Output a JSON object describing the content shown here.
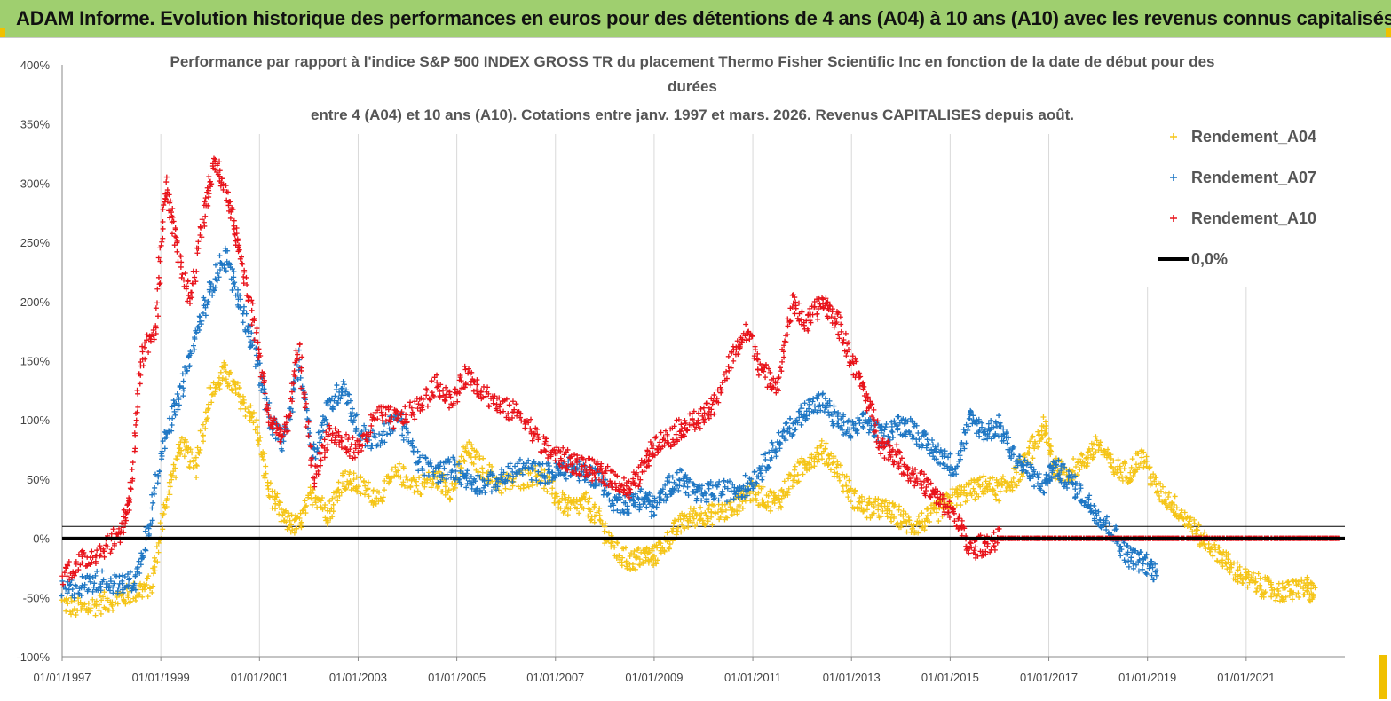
{
  "header": {
    "title": "ADAM Informe. Evolution historique des performances en euros pour des détentions de 4 ans (A04) à 10 ans (A10) avec les revenus connus capitalisés"
  },
  "chart_data": {
    "type": "scatter",
    "title_lines": [
      "Performance par rapport à l'indice S&P 500 INDEX GROSS TR  du placement Thermo Fisher Scientific Inc en fonction de la date de début pour des",
      "durées",
      "entre 4 (A04) et 10 ans (A10).  Cotations entre janv. 1997 et mars. 2026. Revenus CAPITALISES depuis août."
    ],
    "xlabel": "",
    "ylabel": "",
    "xlim": [
      1997.0,
      2023.0
    ],
    "ylim": [
      -100,
      400
    ],
    "yticks": [
      "-100%",
      "-50%",
      "0%",
      "50%",
      "100%",
      "150%",
      "200%",
      "250%",
      "300%",
      "350%",
      "400%"
    ],
    "xticks": [
      "01/01/1997",
      "01/01/1999",
      "01/01/2001",
      "01/01/2003",
      "01/01/2005",
      "01/01/2007",
      "01/01/2009",
      "01/01/2011",
      "01/01/2013",
      "01/01/2015",
      "01/01/2017",
      "01/01/2019",
      "01/01/2021"
    ],
    "grid": "vertical",
    "legend_position": "top-right",
    "series": [
      {
        "name": "Rendement_A04",
        "color": "#f5c518",
        "marker": "+",
        "x": [
          1997.0,
          1997.4,
          1997.8,
          1998.2,
          1998.5,
          1998.8,
          1999.1,
          1999.4,
          1999.7,
          2000.0,
          2000.3,
          2000.6,
          2000.9,
          2001.2,
          2001.5,
          2001.8,
          2002.1,
          2002.4,
          2002.7,
          2003.0,
          2003.4,
          2003.8,
          2004.2,
          2004.6,
          2004.9,
          2005.2,
          2005.5,
          2005.9,
          2006.3,
          2006.7,
          2007.0,
          2007.3,
          2007.6,
          2007.9,
          2008.2,
          2008.5,
          2008.8,
          2009.0,
          2009.3,
          2009.6,
          2009.9,
          2010.2,
          2010.6,
          2010.9,
          2011.2,
          2011.5,
          2011.8,
          2012.1,
          2012.4,
          2012.7,
          2013.0,
          2013.3,
          2013.6,
          2013.9,
          2014.2,
          2014.5,
          2014.8,
          2015.1,
          2015.4,
          2015.7,
          2016.0,
          2016.3,
          2016.6,
          2016.9,
          2017.1,
          2017.4,
          2017.7,
          2018.0,
          2018.3,
          2018.6,
          2018.9,
          2019.2,
          2019.5,
          2019.8,
          2020.1,
          2020.4,
          2020.7,
          2021.0,
          2021.3,
          2021.6,
          2021.9,
          2022.2,
          2022.4
        ],
        "y": [
          -55,
          -60,
          -55,
          -50,
          -45,
          -40,
          30,
          80,
          60,
          120,
          140,
          120,
          100,
          40,
          15,
          10,
          40,
          20,
          50,
          45,
          35,
          55,
          45,
          50,
          40,
          75,
          60,
          45,
          50,
          55,
          35,
          25,
          30,
          15,
          -10,
          -20,
          -15,
          -15,
          0,
          15,
          20,
          20,
          25,
          40,
          35,
          30,
          50,
          65,
          75,
          60,
          35,
          25,
          25,
          20,
          10,
          15,
          25,
          35,
          40,
          45,
          40,
          50,
          70,
          95,
          60,
          55,
          65,
          80,
          60,
          55,
          70,
          40,
          30,
          15,
          0,
          -10,
          -25,
          -35,
          -40,
          -45,
          -45,
          -40,
          -50
        ]
      },
      {
        "name": "Rendement_A07",
        "color": "#1f77c4",
        "marker": "+",
        "x": [
          1997.0,
          1997.4,
          1997.8,
          1998.2,
          1998.5,
          1998.8,
          1999.1,
          1999.4,
          1999.7,
          2000.0,
          2000.3,
          2000.6,
          2000.9,
          2001.2,
          2001.5,
          2001.8,
          2002.1,
          2002.4,
          2002.7,
          2003.0,
          2003.4,
          2003.8,
          2004.2,
          2004.6,
          2004.9,
          2005.2,
          2005.5,
          2005.9,
          2006.3,
          2006.7,
          2007.0,
          2007.3,
          2007.6,
          2007.9,
          2008.2,
          2008.5,
          2008.8,
          2009.0,
          2009.3,
          2009.6,
          2009.9,
          2010.2,
          2010.6,
          2010.9,
          2011.2,
          2011.5,
          2011.8,
          2012.1,
          2012.4,
          2012.7,
          2013.0,
          2013.3,
          2013.6,
          2013.9,
          2014.2,
          2014.5,
          2014.8,
          2015.1,
          2015.4,
          2015.7,
          2016.0,
          2016.3,
          2016.6,
          2016.9,
          2017.1,
          2017.4,
          2017.7,
          2018.0,
          2018.3,
          2018.6,
          2018.9,
          2019.2
        ],
        "y": [
          -45,
          -40,
          -35,
          -40,
          -35,
          20,
          90,
          120,
          170,
          210,
          240,
          200,
          160,
          100,
          80,
          150,
          70,
          110,
          130,
          90,
          80,
          105,
          65,
          55,
          60,
          50,
          45,
          50,
          60,
          55,
          55,
          60,
          55,
          50,
          30,
          30,
          35,
          25,
          45,
          50,
          35,
          40,
          40,
          45,
          60,
          80,
          95,
          110,
          115,
          100,
          90,
          100,
          85,
          95,
          95,
          80,
          70,
          60,
          100,
          90,
          95,
          70,
          55,
          45,
          60,
          50,
          35,
          20,
          5,
          -15,
          -20,
          -30
        ]
      },
      {
        "name": "Rendement_A10",
        "color": "#e8131a",
        "marker": "+",
        "x": [
          1997.0,
          1997.4,
          1997.8,
          1998.2,
          1998.4,
          1998.6,
          1998.9,
          1999.1,
          1999.3,
          1999.6,
          1999.9,
          2000.1,
          2000.4,
          2000.6,
          2000.9,
          2001.2,
          2001.5,
          2001.8,
          2002.1,
          2002.4,
          2002.7,
          2003.0,
          2003.4,
          2003.8,
          2004.2,
          2004.6,
          2004.9,
          2005.2,
          2005.5,
          2005.9,
          2006.3,
          2006.7,
          2007.0,
          2007.3,
          2007.6,
          2007.9,
          2008.2,
          2008.5,
          2008.8,
          2009.0,
          2009.3,
          2009.6,
          2009.9,
          2010.2,
          2010.6,
          2010.9,
          2011.2,
          2011.5,
          2011.8,
          2012.1,
          2012.4,
          2012.7,
          2013.0,
          2013.3,
          2013.6,
          2013.9,
          2014.2,
          2014.5,
          2014.8,
          2015.1,
          2015.4,
          2015.7,
          2016.0,
          2016.3,
          2016.6,
          2016.9,
          2017.2,
          2017.5,
          2017.8,
          2018.1,
          2018.4,
          2018.7,
          2019.0,
          2019.3,
          2019.6,
          2019.9,
          2020.2,
          2020.5,
          2020.8,
          2021.1,
          2021.4,
          2021.7,
          2022.0,
          2022.3,
          2022.6,
          2022.9
        ],
        "y": [
          -30,
          -20,
          -10,
          5,
          40,
          150,
          180,
          300,
          250,
          200,
          280,
          320,
          280,
          240,
          180,
          100,
          85,
          160,
          50,
          90,
          80,
          75,
          105,
          100,
          110,
          130,
          115,
          140,
          125,
          110,
          105,
          80,
          70,
          65,
          60,
          55,
          50,
          40,
          60,
          80,
          85,
          95,
          100,
          110,
          155,
          175,
          140,
          130,
          200,
          180,
          200,
          185,
          150,
          120,
          80,
          70,
          55,
          45,
          30,
          20,
          -10,
          -5,
          0,
          0,
          0,
          0,
          0,
          0,
          0,
          0,
          0,
          0,
          0,
          0,
          0,
          0,
          0,
          0,
          0,
          0,
          0,
          0,
          0,
          0,
          0,
          0
        ]
      },
      {
        "name": "0,0%",
        "color": "#000000",
        "marker": "line",
        "y_constant": 0
      }
    ]
  }
}
